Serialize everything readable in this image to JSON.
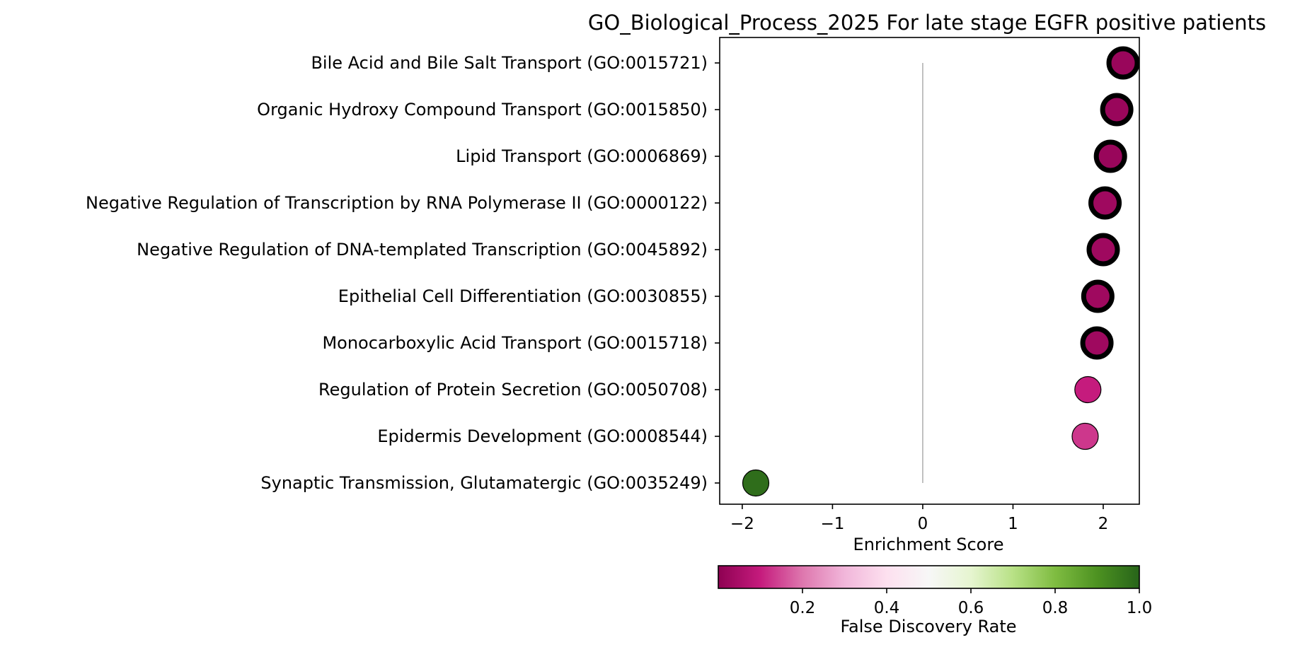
{
  "chart_data": {
    "type": "scatter",
    "title": "GO_Biological_Process_2025 For late stage EGFR positive patients",
    "xlabel": "Enrichment Score",
    "ylabel": "",
    "xlim": [
      -2.25,
      2.4
    ],
    "xticks": [
      -2,
      -1,
      0,
      1,
      2
    ],
    "xtick_labels": [
      "−2",
      "−1",
      "0",
      "1",
      "2"
    ],
    "zero_line": true,
    "grid": false,
    "terms": [
      "Bile Acid and Bile Salt Transport (GO:0015721)",
      "Organic Hydroxy Compound Transport (GO:0015850)",
      "Lipid Transport (GO:0006869)",
      "Negative Regulation of Transcription by RNA Polymerase II (GO:0000122)",
      "Negative Regulation of DNA-templated Transcription (GO:0045892)",
      "Epithelial Cell Differentiation (GO:0030855)",
      "Monocarboxylic Acid Transport (GO:0015718)",
      "Regulation of Protein Secretion (GO:0050708)",
      "Epidermis Development (GO:0008544)",
      "Synaptic Transmission, Glutamatergic (GO:0035249)"
    ],
    "enrichment_score": [
      2.22,
      2.15,
      2.08,
      2.02,
      2.0,
      1.94,
      1.93,
      1.83,
      1.8,
      -1.85
    ],
    "fdr": [
      0.02,
      0.02,
      0.02,
      0.03,
      0.03,
      0.03,
      0.03,
      0.1,
      0.13,
      0.98
    ],
    "significant": [
      true,
      true,
      true,
      true,
      true,
      true,
      true,
      false,
      false,
      false
    ],
    "colorbar": {
      "label": "False Discovery Rate",
      "range": [
        0.0,
        1.0
      ],
      "ticks": [
        0.2,
        0.4,
        0.6,
        0.8,
        1.0
      ],
      "tick_labels": [
        "0.2",
        "0.4",
        "0.6",
        "0.8",
        "1.0"
      ],
      "colormap": "PiYG",
      "placement": "bottom"
    }
  },
  "colors": {
    "ramp": [
      "#8e0152",
      "#c51b7d",
      "#de77ae",
      "#f1b6da",
      "#fde0ef",
      "#f7f7f7",
      "#e6f5d0",
      "#b8e186",
      "#7fbc41",
      "#4d9221",
      "#276419"
    ],
    "zero_line": "#a0a0a0",
    "axis": "#000000"
  }
}
